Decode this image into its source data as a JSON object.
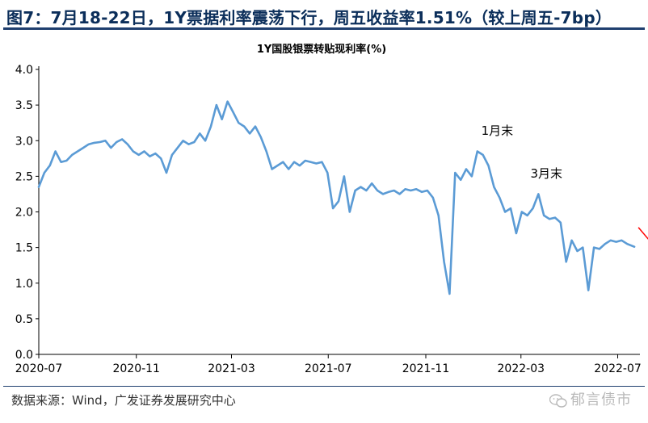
{
  "header": {
    "title": "图7：7月18-22日，1Y票据利率震荡下行，周五收益率1.51%（较上周五-7bp）"
  },
  "source": {
    "text": "数据来源：Wind，广发证券发展研究中心"
  },
  "watermark": {
    "text": "郁言债市",
    "icon": "wechat-icon"
  },
  "chart_data": {
    "type": "line",
    "title": "1Y国股银票转贴现利率(%)",
    "xlabel": "",
    "ylabel": "",
    "ylim": [
      0,
      4
    ],
    "yticks": [
      "0.0",
      "0.5",
      "1.0",
      "1.5",
      "2.0",
      "2.5",
      "3.0",
      "3.5",
      "4.0"
    ],
    "xticks": [
      {
        "label": "2020-07",
        "date": "2020-07-01"
      },
      {
        "label": "2020-11",
        "date": "2020-11-01"
      },
      {
        "label": "2021-03",
        "date": "2021-03-01"
      },
      {
        "label": "2021-07",
        "date": "2021-07-01"
      },
      {
        "label": "2021-11",
        "date": "2021-11-01"
      },
      {
        "label": "2022-03",
        "date": "2022-03-01"
      },
      {
        "label": "2022-07",
        "date": "2022-07-01"
      }
    ],
    "grid": false,
    "line_color": "#5b9bd5",
    "arrow_color": "#ff0000",
    "annotations": [
      {
        "text": "1月末",
        "date": "2022-01-28",
        "value": 2.9
      },
      {
        "text": "3月末",
        "date": "2022-03-31",
        "value": 2.3
      }
    ],
    "series": [
      {
        "name": "",
        "x": [
          "2020-07-01",
          "2020-07-08",
          "2020-07-15",
          "2020-07-22",
          "2020-07-29",
          "2020-08-05",
          "2020-08-12",
          "2020-08-19",
          "2020-08-26",
          "2020-09-02",
          "2020-09-09",
          "2020-09-16",
          "2020-09-23",
          "2020-09-30",
          "2020-10-07",
          "2020-10-14",
          "2020-10-21",
          "2020-10-28",
          "2020-11-04",
          "2020-11-11",
          "2020-11-18",
          "2020-11-25",
          "2020-12-02",
          "2020-12-09",
          "2020-12-16",
          "2020-12-23",
          "2020-12-30",
          "2021-01-06",
          "2021-01-13",
          "2021-01-20",
          "2021-01-27",
          "2021-02-03",
          "2021-02-10",
          "2021-02-17",
          "2021-02-24",
          "2021-03-03",
          "2021-03-10",
          "2021-03-17",
          "2021-03-24",
          "2021-03-31",
          "2021-04-07",
          "2021-04-14",
          "2021-04-21",
          "2021-04-28",
          "2021-05-05",
          "2021-05-12",
          "2021-05-19",
          "2021-05-26",
          "2021-06-02",
          "2021-06-09",
          "2021-06-16",
          "2021-06-23",
          "2021-06-30",
          "2021-07-07",
          "2021-07-14",
          "2021-07-21",
          "2021-07-28",
          "2021-08-04",
          "2021-08-11",
          "2021-08-18",
          "2021-08-25",
          "2021-09-01",
          "2021-09-08",
          "2021-09-15",
          "2021-09-22",
          "2021-09-29",
          "2021-10-06",
          "2021-10-13",
          "2021-10-20",
          "2021-10-27",
          "2021-11-03",
          "2021-11-10",
          "2021-11-17",
          "2021-11-24",
          "2021-12-01",
          "2021-12-08",
          "2021-12-15",
          "2021-12-22",
          "2021-12-29",
          "2022-01-05",
          "2022-01-12",
          "2022-01-19",
          "2022-01-26",
          "2022-02-02",
          "2022-02-09",
          "2022-02-16",
          "2022-02-23",
          "2022-03-02",
          "2022-03-09",
          "2022-03-16",
          "2022-03-23",
          "2022-03-30",
          "2022-04-06",
          "2022-04-13",
          "2022-04-20",
          "2022-04-27",
          "2022-05-04",
          "2022-05-11",
          "2022-05-18",
          "2022-05-25",
          "2022-06-01",
          "2022-06-08",
          "2022-06-15",
          "2022-06-22",
          "2022-06-29",
          "2022-07-06",
          "2022-07-13",
          "2022-07-22"
        ],
        "values": [
          2.35,
          2.55,
          2.65,
          2.85,
          2.7,
          2.72,
          2.8,
          2.85,
          2.9,
          2.95,
          2.97,
          2.98,
          3.0,
          2.9,
          2.98,
          3.02,
          2.95,
          2.85,
          2.8,
          2.85,
          2.78,
          2.82,
          2.75,
          2.55,
          2.8,
          2.9,
          3.0,
          2.95,
          2.98,
          3.1,
          3.0,
          3.2,
          3.5,
          3.3,
          3.55,
          3.4,
          3.25,
          3.2,
          3.1,
          3.2,
          3.05,
          2.85,
          2.6,
          2.65,
          2.7,
          2.6,
          2.7,
          2.65,
          2.72,
          2.7,
          2.68,
          2.7,
          2.55,
          2.05,
          2.15,
          2.5,
          2.0,
          2.3,
          2.35,
          2.3,
          2.4,
          2.3,
          2.25,
          2.28,
          2.3,
          2.25,
          2.32,
          2.3,
          2.32,
          2.28,
          2.3,
          2.2,
          1.95,
          1.3,
          0.85,
          2.55,
          2.45,
          2.6,
          2.5,
          2.85,
          2.8,
          2.65,
          2.35,
          2.2,
          2.0,
          2.05,
          1.7,
          2.0,
          1.95,
          2.05,
          2.25,
          1.95,
          1.9,
          1.92,
          1.85,
          1.3,
          1.6,
          1.45,
          1.5,
          0.9,
          1.5,
          1.48,
          1.55,
          1.6,
          1.58,
          1.6,
          1.55,
          1.51
        ]
      }
    ]
  }
}
